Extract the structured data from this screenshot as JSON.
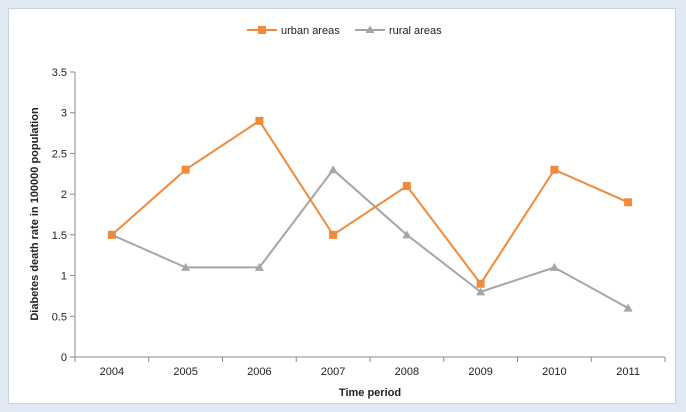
{
  "chart_data": {
    "type": "line",
    "title": "",
    "xlabel": "Time period",
    "ylabel": "Diabetes death rate in 100000 population",
    "categories": [
      "2004",
      "2005",
      "2006",
      "2007",
      "2008",
      "2009",
      "2010",
      "2011"
    ],
    "ylim": [
      0,
      3.5
    ],
    "yticks": [
      "0",
      "0.5",
      "1",
      "1.5",
      "2",
      "2.5",
      "3",
      "3.5"
    ],
    "grid": false,
    "legend_position": "top",
    "series": [
      {
        "name": "urban areas",
        "color": "#f08a3c",
        "marker": "square",
        "values": [
          1.5,
          2.3,
          2.9,
          1.5,
          2.1,
          0.9,
          2.3,
          1.9
        ]
      },
      {
        "name": "rural areas",
        "color": "#a6a6a6",
        "marker": "triangle",
        "values": [
          1.5,
          1.1,
          1.1,
          2.3,
          1.5,
          0.8,
          1.1,
          0.6
        ]
      }
    ]
  }
}
